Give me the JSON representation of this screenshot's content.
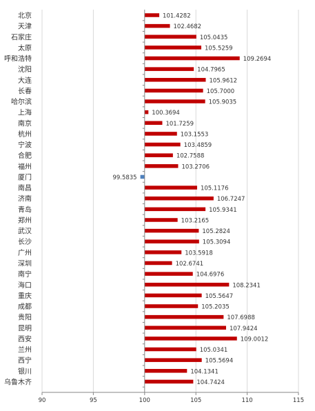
{
  "chart_data": {
    "type": "bar",
    "orientation": "horizontal",
    "categories": [
      "北京",
      "天津",
      "石家庄",
      "太原",
      "呼和浩特",
      "沈阳",
      "大连",
      "长春",
      "哈尔滨",
      "上海",
      "南京",
      "杭州",
      "宁波",
      "合肥",
      "福州",
      "厦门",
      "南昌",
      "济南",
      "青岛",
      "郑州",
      "武汉",
      "长沙",
      "广州",
      "深圳",
      "南宁",
      "海口",
      "重庆",
      "成都",
      "贵阳",
      "昆明",
      "西安",
      "兰州",
      "西宁",
      "银川",
      "乌鲁木齐"
    ],
    "values": [
      101.4282,
      102.4682,
      105.0435,
      105.5259,
      109.2694,
      104.7965,
      105.9612,
      105.7,
      105.9035,
      100.3694,
      101.7259,
      103.1553,
      103.4859,
      102.7588,
      103.2706,
      99.5835,
      105.1176,
      106.7247,
      105.9341,
      103.2165,
      105.2824,
      105.3094,
      103.5918,
      102.6741,
      104.6976,
      108.2341,
      105.5647,
      105.2035,
      107.6988,
      107.9424,
      109.0012,
      105.0341,
      105.5694,
      104.1341,
      104.7424
    ],
    "labels": [
      "101.4282",
      "102.4682",
      "105.0435",
      "105.5259",
      "109.2694",
      "104.7965",
      "105.9612",
      "105.7000",
      "105.9035",
      "100.3694",
      "101.7259",
      "103.1553",
      "103.4859",
      "102.7588",
      "103.2706",
      "99.5835",
      "105.1176",
      "106.7247",
      "105.9341",
      "103.2165",
      "105.2824",
      "105.3094",
      "103.5918",
      "102.6741",
      "104.6976",
      "108.2341",
      "105.5647",
      "105.2035",
      "107.6988",
      "107.9424",
      "109.0012",
      "105.0341",
      "105.5694",
      "104.1341",
      "104.7424"
    ],
    "baseline": 100,
    "xlim": [
      90,
      115
    ],
    "xticks": [
      "90",
      "95",
      "100",
      "105",
      "110",
      "115"
    ],
    "xtick_values": [
      90,
      95,
      100,
      105,
      110,
      115
    ],
    "grid": true,
    "colors": {
      "bar": "#C00000",
      "highlight": "#4F81BD",
      "grid": "#D9D9D9",
      "axis": "#868686"
    },
    "highlight_category": "厦门"
  }
}
